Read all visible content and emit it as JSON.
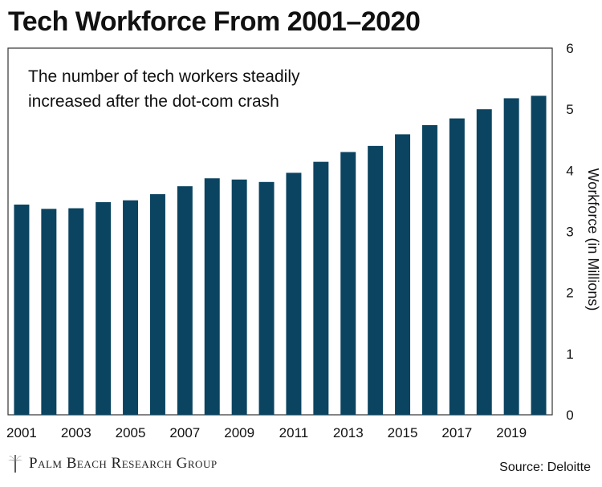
{
  "chart_data": {
    "type": "bar",
    "title": "Tech Workforce From 2001–2020",
    "annotation": [
      "The number of tech workers steadily",
      "increased after the dot-com crash"
    ],
    "ylabel": "Workforce (in Millions)",
    "xlabel": "",
    "ylim": [
      0,
      6
    ],
    "yticks": [
      0,
      1,
      2,
      3,
      4,
      5,
      6
    ],
    "xtick_labels": [
      "2001",
      "2003",
      "2005",
      "2007",
      "2009",
      "2011",
      "2013",
      "2015",
      "2017",
      "2019"
    ],
    "categories": [
      "2001",
      "2002",
      "2003",
      "2004",
      "2005",
      "2006",
      "2007",
      "2008",
      "2009",
      "2010",
      "2011",
      "2012",
      "2013",
      "2014",
      "2015",
      "2016",
      "2017",
      "2018",
      "2019",
      "2020"
    ],
    "values": [
      3.44,
      3.37,
      3.38,
      3.48,
      3.51,
      3.61,
      3.74,
      3.87,
      3.85,
      3.81,
      3.96,
      4.14,
      4.3,
      4.4,
      4.59,
      4.74,
      4.85,
      5.0,
      5.18,
      5.22
    ],
    "grid": false,
    "legend": "none",
    "bar_color": "#0b4461",
    "plot_bg": "#ffffff",
    "frame_color": "#333333"
  },
  "footer": {
    "logo_text": "Palm Beach Research Group",
    "source": "Source: Deloitte"
  },
  "logo_icon": "palm-tree-icon"
}
